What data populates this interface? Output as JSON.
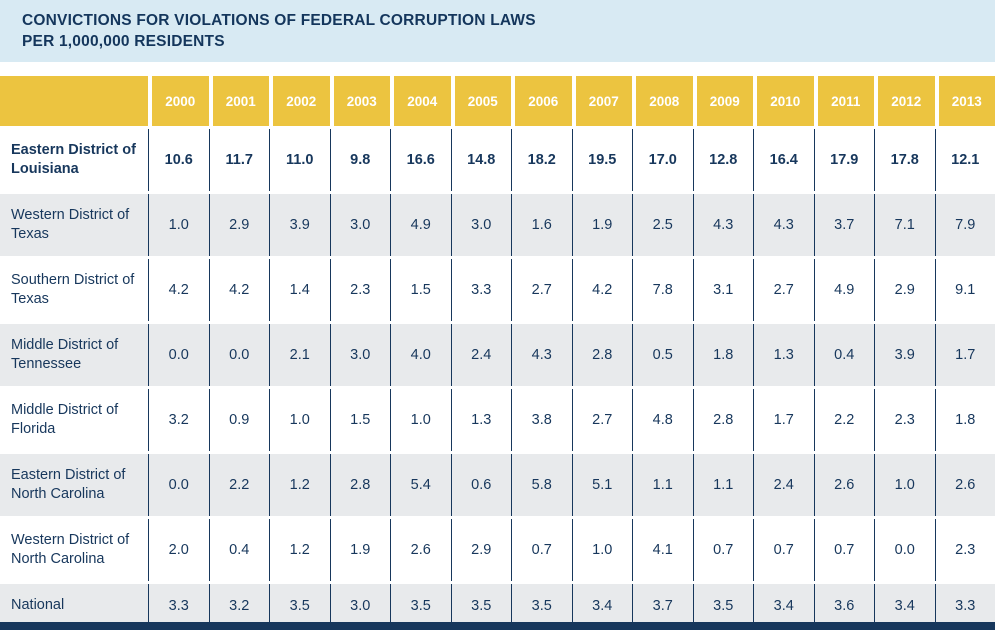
{
  "title": {
    "line1": "CONVICTIONS FOR VIOLATIONS OF FEDERAL CORRUPTION LAWS",
    "line2": "PER 1,000,000 RESIDENTS"
  },
  "colors": {
    "title_background": "#d8eaf3",
    "header_gold": "#ecc440",
    "navy_text": "#17375c",
    "alt_row_gray": "#e8eaec",
    "white_row": "#ffffff"
  },
  "chart_data": {
    "type": "table",
    "title": "CONVICTIONS FOR VIOLATIONS OF FEDERAL CORRUPTION LAWS PER 1,000,000 RESIDENTS",
    "columns": [
      "2000",
      "2001",
      "2002",
      "2003",
      "2004",
      "2005",
      "2006",
      "2007",
      "2008",
      "2009",
      "2010",
      "2011",
      "2012",
      "2013"
    ],
    "rows": [
      {
        "label": "Eastern District of Louisiana",
        "bold": true,
        "values": [
          "10.6",
          "11.7",
          "11.0",
          "9.8",
          "16.6",
          "14.8",
          "18.2",
          "19.5",
          "17.0",
          "12.8",
          "16.4",
          "17.9",
          "17.8",
          "12.1"
        ]
      },
      {
        "label": "Western District of Texas",
        "bold": false,
        "values": [
          "1.0",
          "2.9",
          "3.9",
          "3.0",
          "4.9",
          "3.0",
          "1.6",
          "1.9",
          "2.5",
          "4.3",
          "4.3",
          "3.7",
          "7.1",
          "7.9"
        ]
      },
      {
        "label": "Southern District of Texas",
        "bold": false,
        "values": [
          "4.2",
          "4.2",
          "1.4",
          "2.3",
          "1.5",
          "3.3",
          "2.7",
          "4.2",
          "7.8",
          "3.1",
          "2.7",
          "4.9",
          "2.9",
          "9.1"
        ]
      },
      {
        "label": "Middle District of Tennessee",
        "bold": false,
        "values": [
          "0.0",
          "0.0",
          "2.1",
          "3.0",
          "4.0",
          "2.4",
          "4.3",
          "2.8",
          "0.5",
          "1.8",
          "1.3",
          "0.4",
          "3.9",
          "1.7"
        ]
      },
      {
        "label": "Middle District of Florida",
        "bold": false,
        "values": [
          "3.2",
          "0.9",
          "1.0",
          "1.5",
          "1.0",
          "1.3",
          "3.8",
          "2.7",
          "4.8",
          "2.8",
          "1.7",
          "2.2",
          "2.3",
          "1.8"
        ]
      },
      {
        "label": "Eastern District of North Carolina",
        "bold": false,
        "values": [
          "0.0",
          "2.2",
          "1.2",
          "2.8",
          "5.4",
          "0.6",
          "5.8",
          "5.1",
          "1.1",
          "1.1",
          "2.4",
          "2.6",
          "1.0",
          "2.6"
        ]
      },
      {
        "label": "Western District of North Carolina",
        "bold": false,
        "values": [
          "2.0",
          "0.4",
          "1.2",
          "1.9",
          "2.6",
          "2.9",
          "0.7",
          "1.0",
          "4.1",
          "0.7",
          "0.7",
          "0.7",
          "0.0",
          "2.3"
        ]
      },
      {
        "label": "National",
        "bold": false,
        "values": [
          "3.3",
          "3.2",
          "3.5",
          "3.0",
          "3.5",
          "3.5",
          "3.5",
          "3.4",
          "3.7",
          "3.5",
          "3.4",
          "3.6",
          "3.4",
          "3.3"
        ]
      }
    ]
  }
}
